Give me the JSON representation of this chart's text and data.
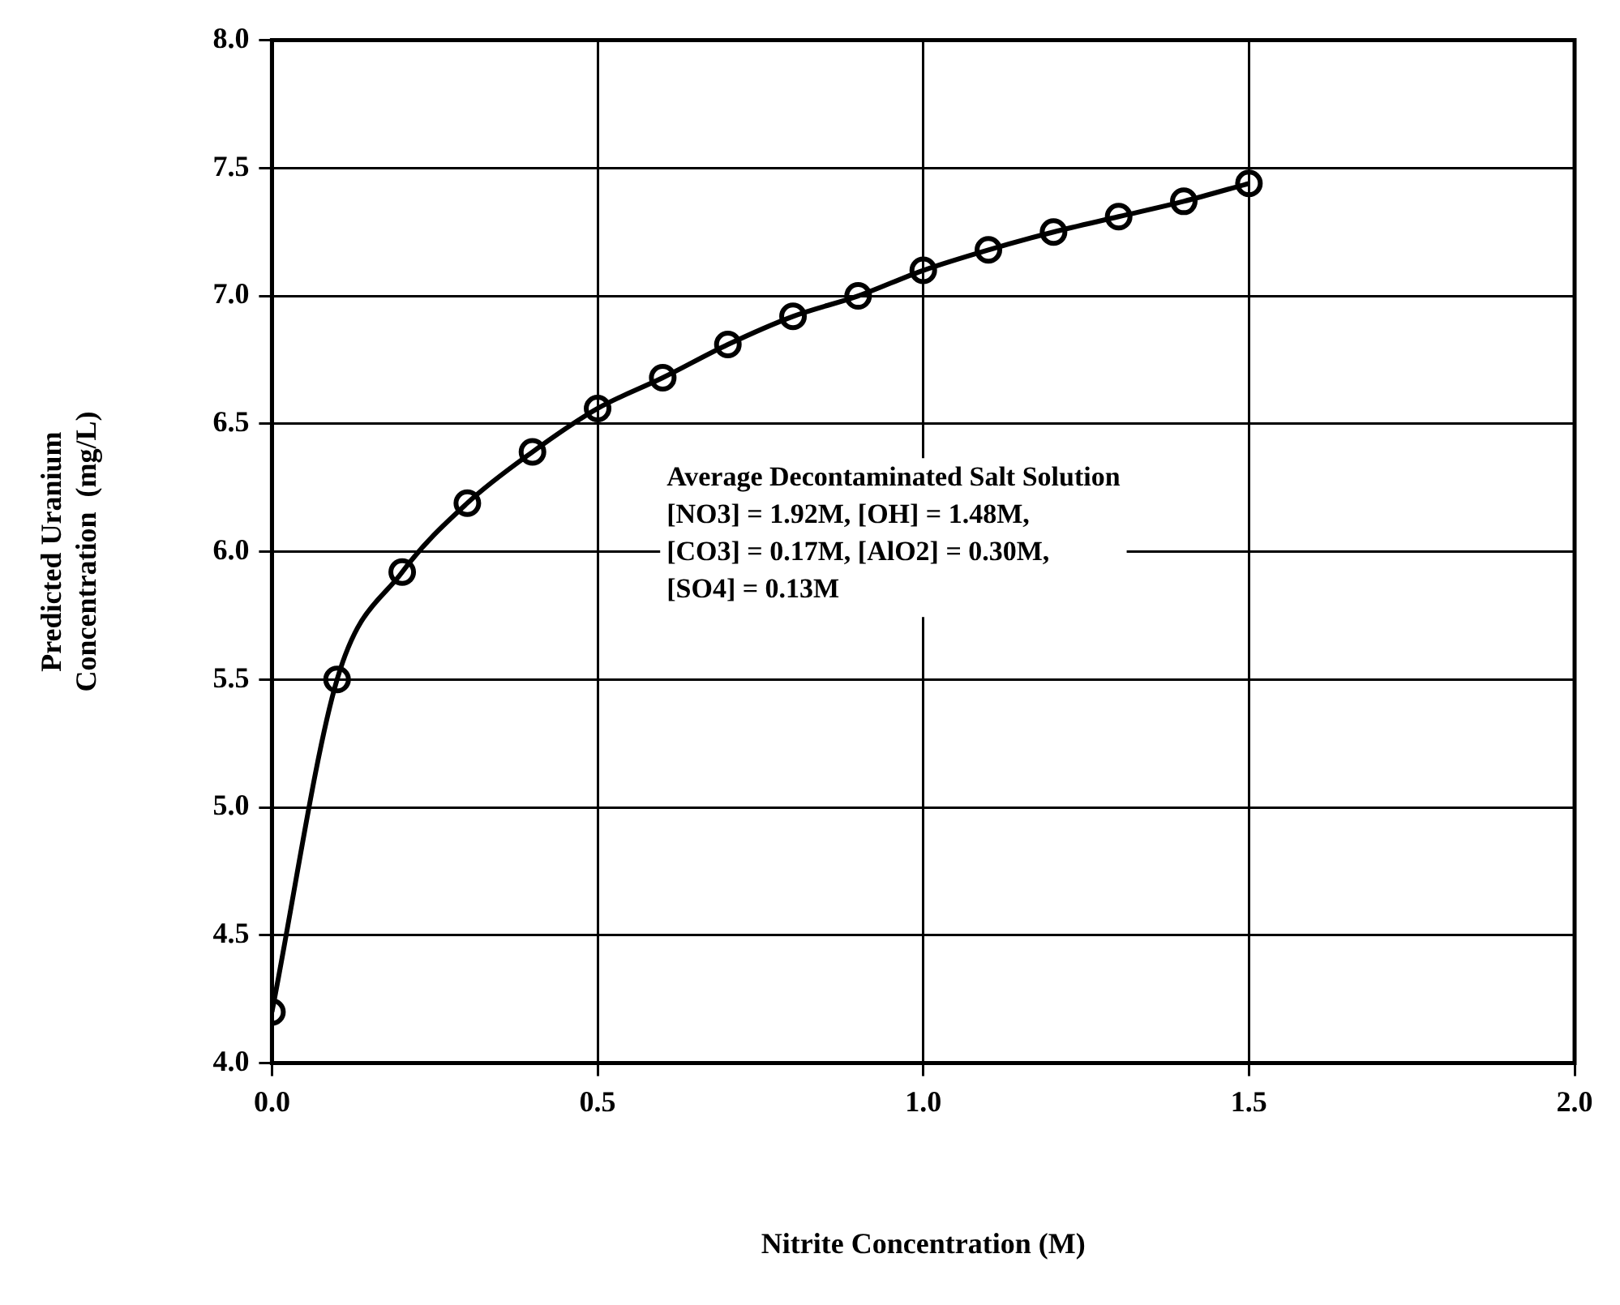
{
  "chart_data": {
    "type": "line",
    "xlabel": "Nitrite Concentration (M)",
    "ylabel": "Predicted Uranium\nConcentration  (mg/L)",
    "x": [
      0,
      0.1,
      0.2,
      0.3,
      0.4,
      0.5,
      0.6,
      0.7,
      0.8,
      0.9,
      1.0,
      1.1,
      1.2,
      1.3,
      1.4,
      1.5
    ],
    "series": [
      {
        "color": "#000000",
        "values": [
          4.2,
          5.5,
          5.92,
          6.19,
          6.39,
          6.56,
          6.68,
          6.81,
          6.92,
          7.0,
          7.1,
          7.18,
          7.25,
          7.31,
          7.37,
          7.44
        ]
      }
    ],
    "xlim": [
      0,
      2
    ],
    "xticks": [
      {
        "value": 0,
        "label": "0.0"
      },
      {
        "value": 0.5,
        "label": "0.5"
      },
      {
        "value": 1,
        "label": "1.0"
      },
      {
        "value": 1.5,
        "label": "1.5"
      },
      {
        "value": 2,
        "label": "2.0"
      }
    ],
    "ylim": [
      4,
      8
    ],
    "yticks": [
      {
        "value": 4,
        "label": "4.0"
      },
      {
        "value": 4.5,
        "label": "4.5"
      },
      {
        "value": 5,
        "label": "5.0"
      },
      {
        "value": 5.5,
        "label": "5.5"
      },
      {
        "value": 6,
        "label": "6.0"
      },
      {
        "value": 6.5,
        "label": "6.5"
      },
      {
        "value": 7,
        "label": "7.0"
      },
      {
        "value": 7.5,
        "label": "7.5"
      },
      {
        "value": 8,
        "label": "8.0"
      }
    ],
    "annotations": [
      "Average Decontaminated Salt Solution",
      "[NO3] = 1.92M, [OH] = 1.48M,",
      "[CO3] = 0.17M, [AlO2] = 0.30M,",
      "[SO4] = 0.13M"
    ],
    "grid": true,
    "legend": false,
    "marker": "circle",
    "line_style": "solid"
  }
}
